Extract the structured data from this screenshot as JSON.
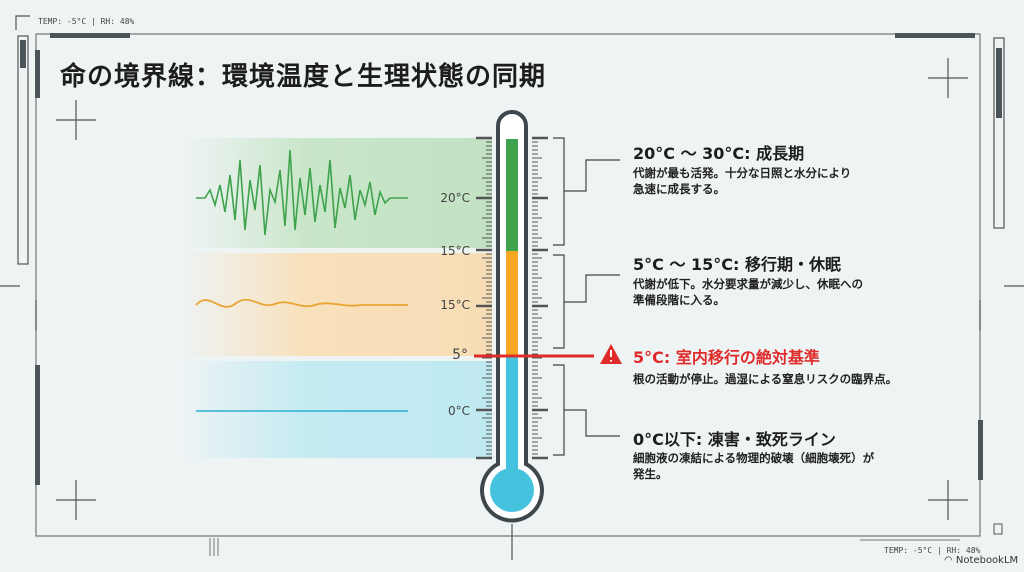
{
  "hud_top": "TEMP: -5°C | RH: 48%",
  "hud_bottom": "TEMP: -5°C | RH: 48%",
  "title": "命の境界線：環境温度と生理状態の同期",
  "scale_labels": [
    "20°C",
    "15°C",
    "15°C",
    "5°",
    "0°C"
  ],
  "zones": [
    {
      "heading": "20°C ～ 30°C: 成長期",
      "desc": [
        "代謝が最も活発。十分な日照と水分により",
        "急速に成長する。"
      ],
      "color": "#3fa34d"
    },
    {
      "heading": "5°C ～ 15°C: 移行期・休眠",
      "desc": [
        "代謝が低下。水分要求量が減少し、休眠への",
        "準備段階に入る。"
      ],
      "color": "#f5a623"
    },
    {
      "heading": "5°C: 室内移行の絶対基準",
      "desc": [
        "根の活動が停止。過湿による窒息リスクの臨界点。"
      ],
      "color": "#e02b2b",
      "icon": "warning-icon"
    },
    {
      "heading": "0°C以下: 凍害・致死ライン",
      "desc": [
        "細胞液の凍結による物理的破壊（細胞壊死）が",
        "発生。"
      ],
      "color": "#45c3de"
    }
  ],
  "brand": "NotebookLM"
}
